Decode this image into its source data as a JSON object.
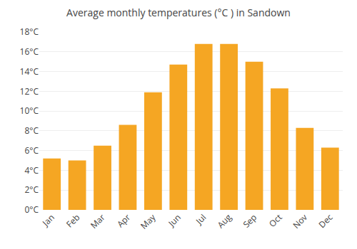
{
  "chart_data": {
    "type": "bar",
    "title": "Average monthly temperatures (°C ) in Sandown",
    "categories": [
      "Jan",
      "Feb",
      "Mar",
      "Apr",
      "May",
      "Jun",
      "Jul",
      "Aug",
      "Sep",
      "Oct",
      "Nov",
      "Dec"
    ],
    "values": [
      5.2,
      5.0,
      6.5,
      8.6,
      11.9,
      14.7,
      16.8,
      16.8,
      15.0,
      12.3,
      8.3,
      6.3
    ],
    "color": "#F5A623",
    "ylim": [
      0,
      18
    ],
    "yticks": [
      {
        "value": 0,
        "label": "0°C"
      },
      {
        "value": 2,
        "label": "2°C"
      },
      {
        "value": 4,
        "label": "4°C"
      },
      {
        "value": 6,
        "label": "6°C"
      },
      {
        "value": 8,
        "label": "8°C"
      },
      {
        "value": 10,
        "label": "10°C"
      },
      {
        "value": 12,
        "label": "12°C"
      },
      {
        "value": 14,
        "label": "14°C"
      },
      {
        "value": 16,
        "label": "16°C"
      },
      {
        "value": 18,
        "label": "18°C"
      }
    ],
    "grid": true
  }
}
